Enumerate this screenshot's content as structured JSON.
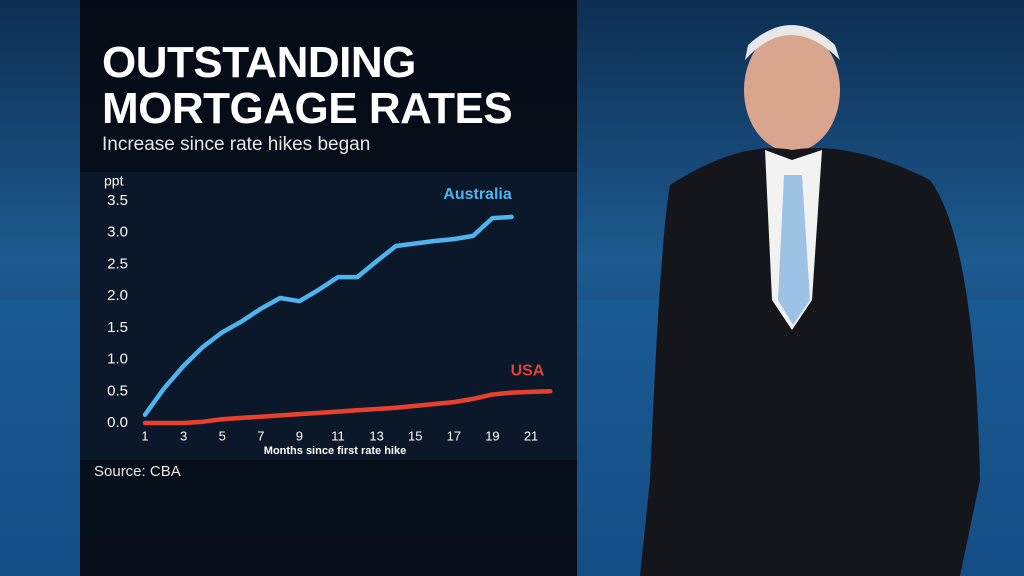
{
  "chart_data": {
    "type": "line",
    "title": "OUTSTANDING MORTGAGE RATES",
    "subtitle": "Increase since rate hikes began",
    "y_label": "ppt",
    "x_label": "Months since first rate hike",
    "source": "Source: CBA",
    "x": [
      1,
      2,
      3,
      4,
      5,
      6,
      7,
      8,
      9,
      10,
      11,
      12,
      13,
      14,
      15,
      16,
      17,
      18,
      19,
      20,
      21,
      22
    ],
    "series": [
      {
        "name": "Australia",
        "color": "#4fb3ee",
        "values": [
          0.13,
          0.55,
          0.9,
          1.2,
          1.43,
          1.6,
          1.8,
          1.97,
          1.92,
          2.1,
          2.3,
          2.3,
          2.55,
          2.79,
          2.83,
          2.87,
          2.9,
          2.95,
          3.23,
          3.25,
          null,
          null
        ]
      },
      {
        "name": "USA",
        "color": "#e8402f",
        "values": [
          0,
          0,
          0,
          0.02,
          0.06,
          0.08,
          0.1,
          0.12,
          0.14,
          0.16,
          0.18,
          0.2,
          0.22,
          0.24,
          0.27,
          0.3,
          0.33,
          0.38,
          0.45,
          0.48,
          0.49,
          0.5
        ]
      }
    ],
    "xlim": [
      0.3,
      22.5
    ],
    "xticks": [
      1,
      3,
      5,
      7,
      9,
      11,
      13,
      15,
      17,
      19,
      21
    ],
    "ylim": [
      0,
      3.5
    ],
    "yticks": [
      {
        "value": 0,
        "label": "0.0"
      },
      0.5,
      {
        "value": 1,
        "label": "1.0"
      },
      1.5,
      {
        "value": 2,
        "label": "2.0"
      },
      2.5,
      {
        "value": 3,
        "label": "3.0"
      },
      3.5
    ],
    "grid": false
  }
}
